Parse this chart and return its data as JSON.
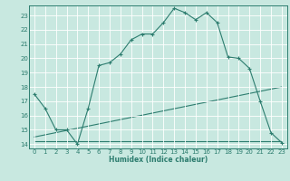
{
  "bg_color": "#c8e8e0",
  "grid_color": "#ffffff",
  "line_color": "#2d7d6f",
  "xlabel": "Humidex (Indice chaleur)",
  "xlim": [
    -0.5,
    23.5
  ],
  "ylim": [
    13.7,
    23.7
  ],
  "yticks": [
    14,
    15,
    16,
    17,
    18,
    19,
    20,
    21,
    22,
    23
  ],
  "xticks": [
    0,
    1,
    2,
    3,
    4,
    5,
    6,
    7,
    8,
    9,
    10,
    11,
    12,
    13,
    14,
    15,
    16,
    17,
    18,
    19,
    20,
    21,
    22,
    23
  ],
  "line1_x": [
    0,
    1,
    2,
    3,
    4,
    5,
    6,
    7,
    8,
    9,
    10,
    11,
    12,
    13,
    14,
    15,
    16,
    17,
    18,
    19,
    20,
    21,
    22,
    23
  ],
  "line1_y": [
    17.5,
    16.5,
    15.0,
    15.0,
    14.0,
    16.5,
    19.5,
    19.7,
    20.3,
    21.3,
    21.7,
    21.7,
    22.5,
    23.5,
    23.2,
    22.7,
    23.2,
    22.5,
    20.1,
    20.0,
    19.3,
    17.0,
    14.8,
    14.1
  ],
  "line2_x": [
    0,
    23
  ],
  "line2_y": [
    14.5,
    18.0
  ],
  "line3_x": [
    0,
    23
  ],
  "line3_y": [
    14.2,
    14.2
  ],
  "xlabel_fontsize": 5.5,
  "tick_fontsize": 5.0
}
